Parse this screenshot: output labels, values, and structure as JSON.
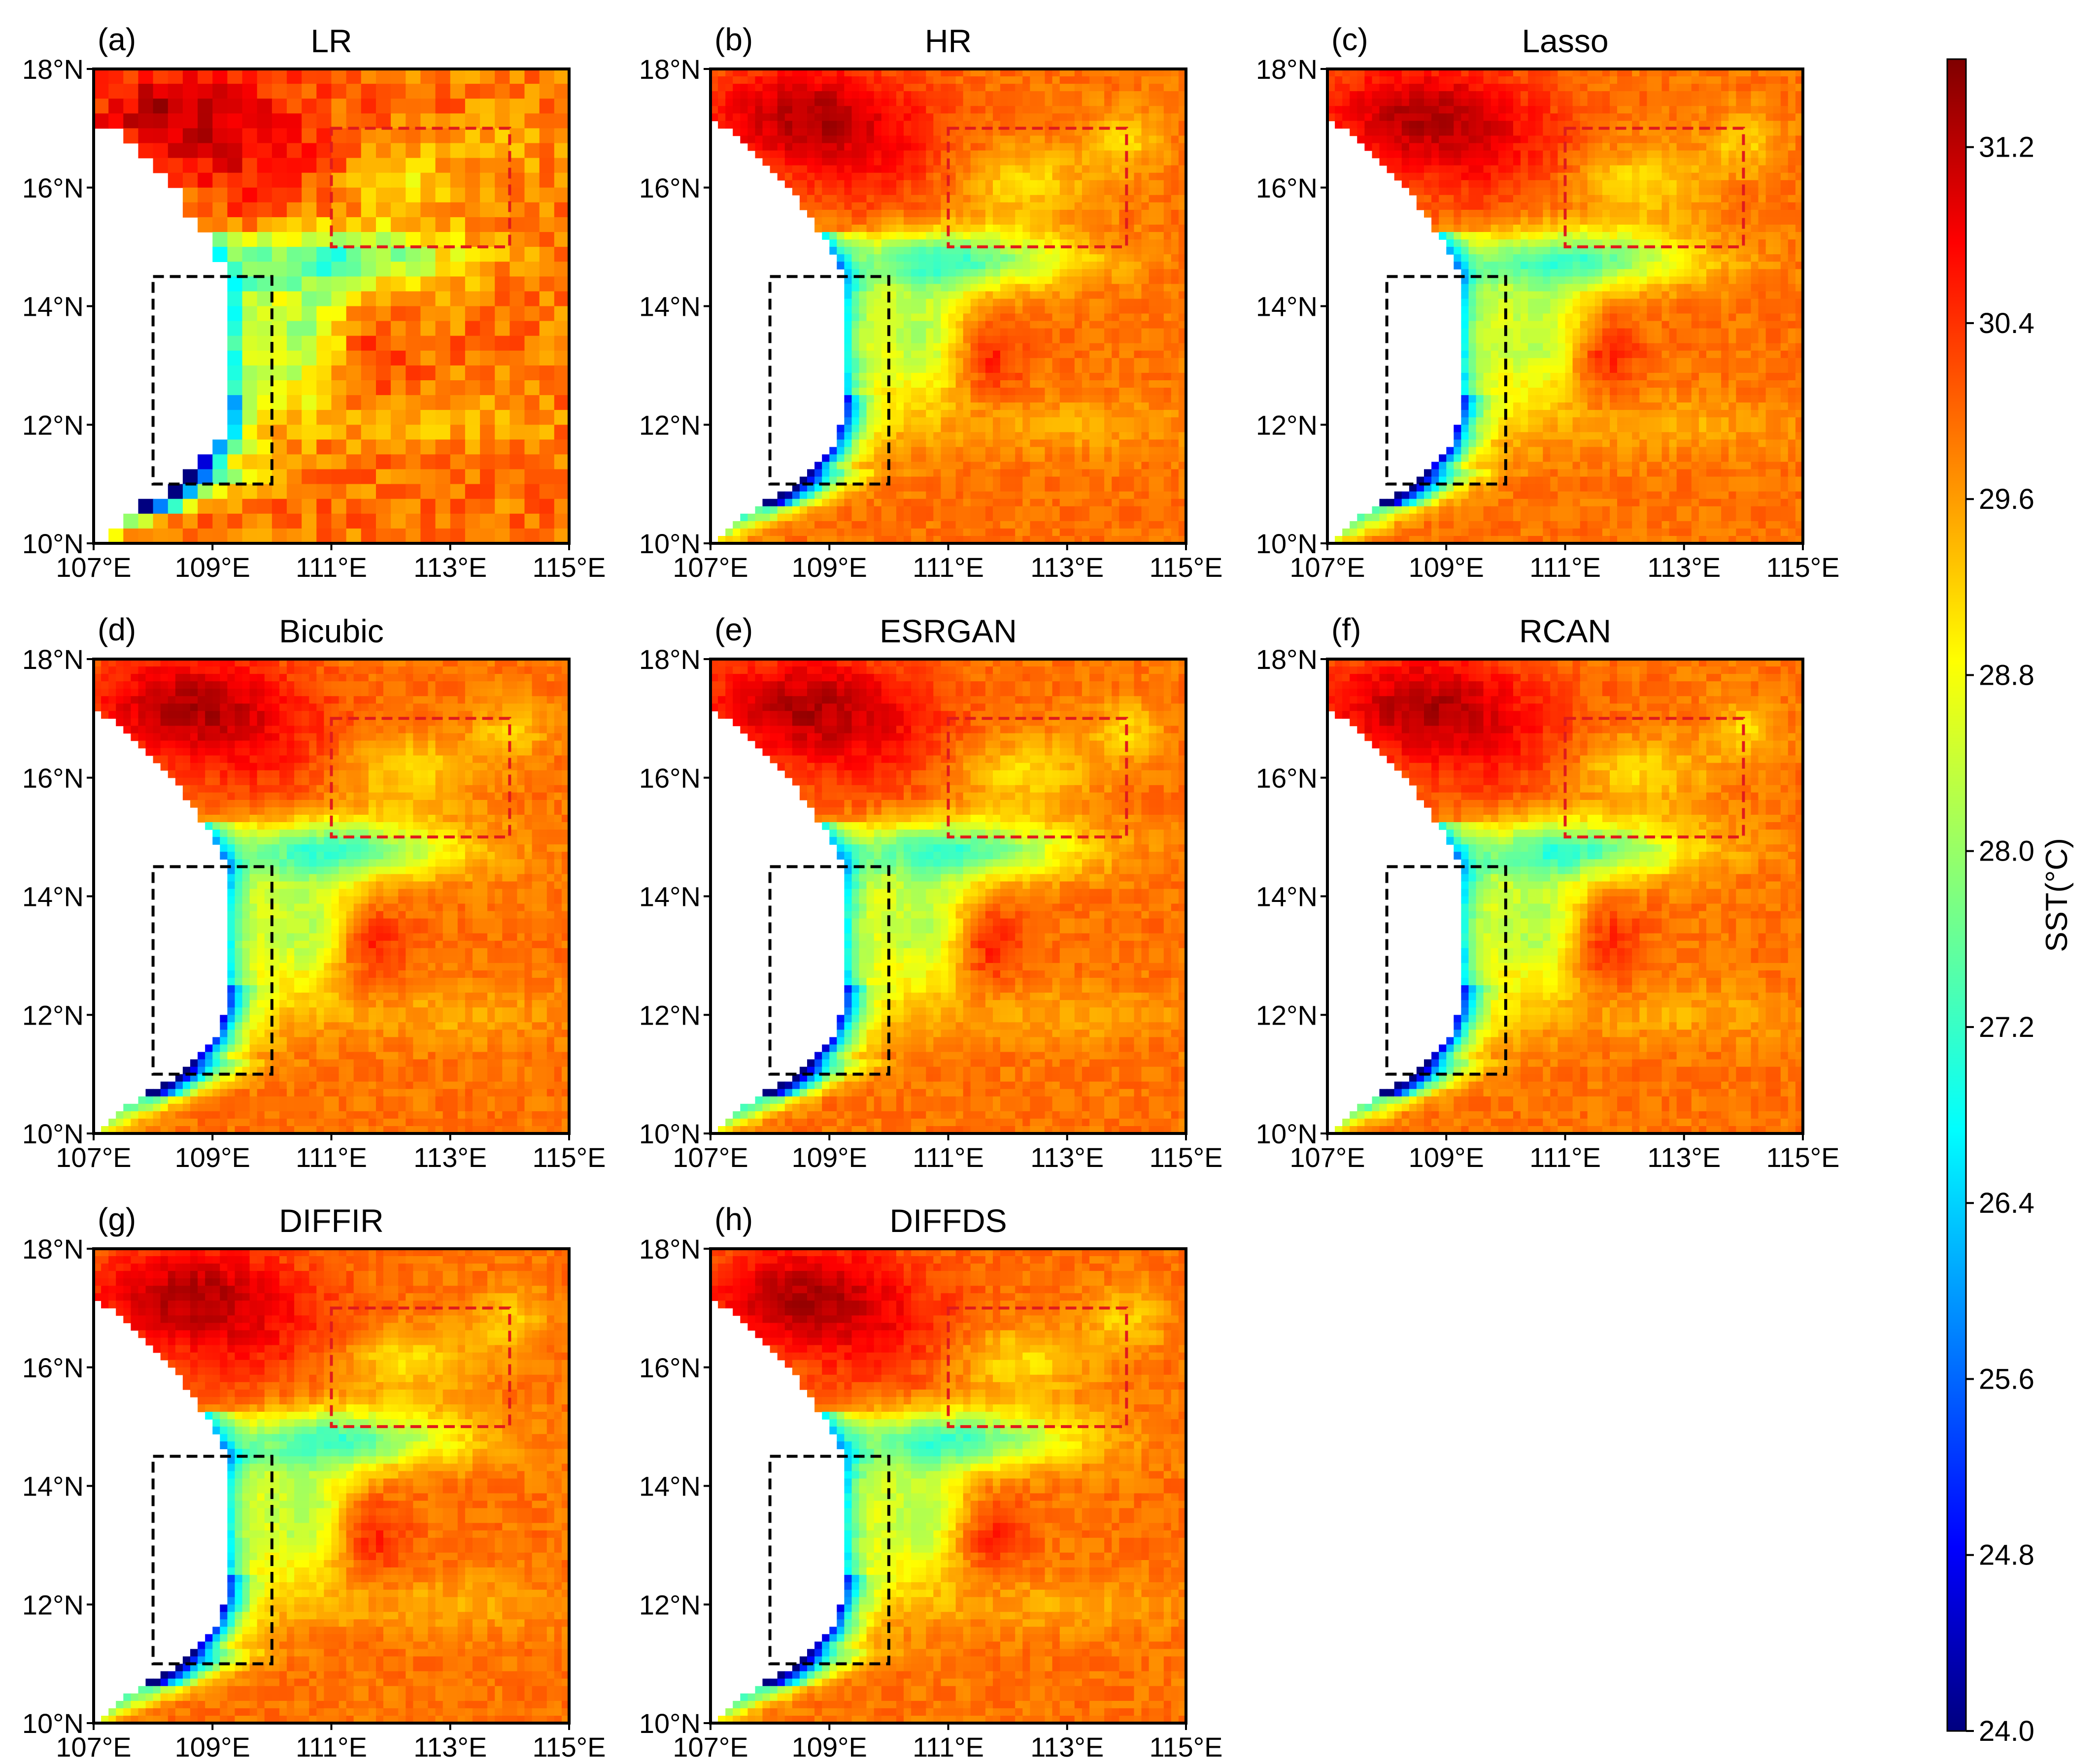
{
  "figure": {
    "panels": [
      {
        "id": "a",
        "letter": "(a)",
        "title": "LR",
        "lowres": true
      },
      {
        "id": "b",
        "letter": "(b)",
        "title": "HR",
        "lowres": false
      },
      {
        "id": "c",
        "letter": "(c)",
        "title": "Lasso",
        "lowres": false
      },
      {
        "id": "d",
        "letter": "(d)",
        "title": "Bicubic",
        "lowres": false
      },
      {
        "id": "e",
        "letter": "(e)",
        "title": "ESRGAN",
        "lowres": false
      },
      {
        "id": "f",
        "letter": "(f)",
        "title": "RCAN",
        "lowres": false
      },
      {
        "id": "g",
        "letter": "(g)",
        "title": "DIFFIR",
        "lowres": false
      },
      {
        "id": "h",
        "letter": "(h)",
        "title": "DIFFDS",
        "lowres": false
      }
    ],
    "x_ticks": [
      "107°E",
      "109°E",
      "111°E",
      "113°E",
      "115°E"
    ],
    "y_ticks": [
      "18°N",
      "16°N",
      "14°N",
      "12°N",
      "10°N"
    ],
    "extent": {
      "lon_min": 107,
      "lon_max": 115,
      "lat_min": 10,
      "lat_max": 18
    },
    "boxes": [
      {
        "name": "coastal-upwelling-box",
        "color": "#000000",
        "lon": [
          108,
          110
        ],
        "lat": [
          11,
          14.5
        ]
      },
      {
        "name": "offshore-box",
        "color": "#e01b1b",
        "lon": [
          111,
          114
        ],
        "lat": [
          15,
          17
        ]
      }
    ],
    "colorbar": {
      "title": "SST(°C)",
      "min": 24.0,
      "max": 31.6,
      "ticks": [
        "31.2",
        "30.4",
        "29.6",
        "28.8",
        "28.0",
        "27.2",
        "26.4",
        "25.6",
        "24.8",
        "24.0"
      ],
      "colormap": "jet",
      "colors": [
        "#00007f",
        "#0000ff",
        "#007fff",
        "#00ffff",
        "#7fff7f",
        "#ffff00",
        "#ff7f00",
        "#ff0000",
        "#7f0000"
      ]
    }
  }
}
